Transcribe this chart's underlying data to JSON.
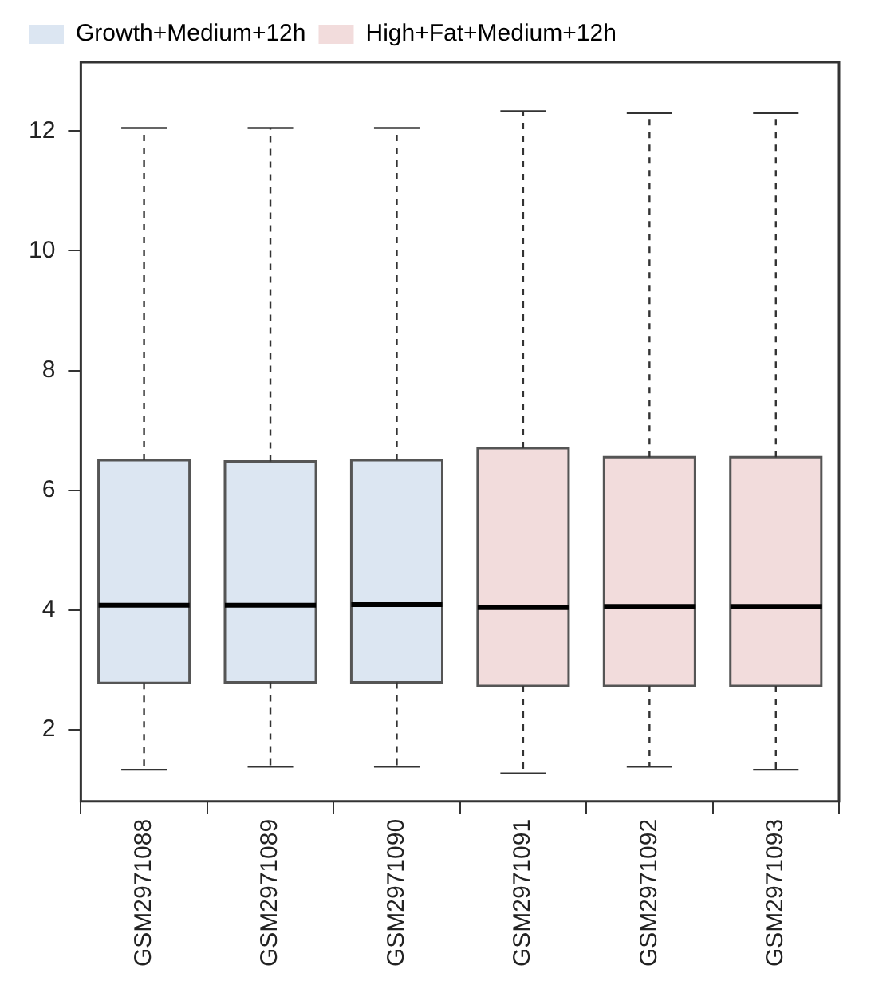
{
  "chart_data": {
    "type": "box",
    "categories": [
      "GSM2971088",
      "GSM2971089",
      "GSM2971090",
      "GSM2971091",
      "GSM2971092",
      "GSM2971093"
    ],
    "series": [
      {
        "name": "Growth+Medium+12h",
        "color": "#dce6f2",
        "boxes": [
          {
            "low": 1.33,
            "q1": 2.78,
            "median": 4.08,
            "q3": 6.5,
            "high": 12.05
          },
          {
            "low": 1.38,
            "q1": 2.79,
            "median": 4.08,
            "q3": 6.48,
            "high": 12.05
          },
          {
            "low": 1.38,
            "q1": 2.79,
            "median": 4.09,
            "q3": 6.5,
            "high": 12.05
          },
          null,
          null,
          null
        ]
      },
      {
        "name": "High+Fat+Medium+12h",
        "color": "#f2dcdc",
        "boxes": [
          null,
          null,
          null,
          {
            "low": 1.27,
            "q1": 2.73,
            "median": 4.04,
            "q3": 6.7,
            "high": 12.33
          },
          {
            "low": 1.38,
            "q1": 2.73,
            "median": 4.06,
            "q3": 6.55,
            "high": 12.3
          },
          {
            "low": 1.33,
            "q1": 2.73,
            "median": 4.06,
            "q3": 6.55,
            "high": 12.3
          }
        ]
      }
    ],
    "ylim": [
      0.8,
      13.15
    ],
    "yticks": [
      2,
      4,
      6,
      8,
      10,
      12
    ],
    "grid": false,
    "legend": "top left",
    "line_style": "dashed"
  }
}
